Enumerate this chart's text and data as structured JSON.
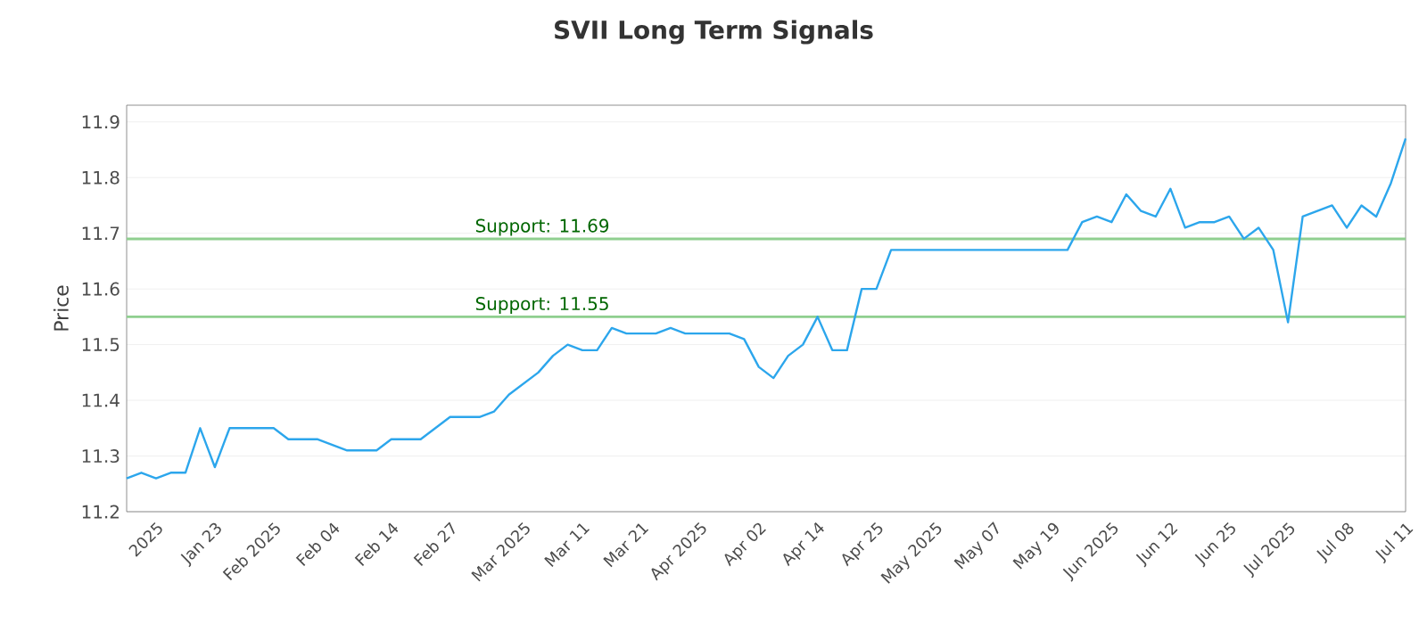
{
  "chart_data": {
    "type": "line",
    "title": "SVII Long Term Signals",
    "ylabel": "Price",
    "categories": [
      null,
      null,
      "2025",
      null,
      null,
      null,
      "Jan 23",
      null,
      null,
      null,
      "Feb 2025",
      null,
      null,
      null,
      "Feb 04",
      null,
      null,
      null,
      "Feb 14",
      null,
      null,
      null,
      "Feb 27",
      null,
      null,
      null,
      null,
      "Mar 2025",
      null,
      null,
      null,
      "Mar 11",
      null,
      null,
      null,
      "Mar 21",
      null,
      null,
      null,
      "Apr 2025",
      null,
      null,
      null,
      "Apr 02",
      null,
      null,
      null,
      "Apr 14",
      null,
      null,
      null,
      "Apr 25",
      null,
      null,
      null,
      "May 2025",
      null,
      null,
      null,
      "May 07",
      null,
      null,
      null,
      "May 19",
      null,
      null,
      null,
      "Jun 2025",
      null,
      null,
      null,
      "Jun 12",
      null,
      null,
      null,
      "Jun 25",
      null,
      null,
      null,
      "Jul 2025",
      null,
      null,
      null,
      "Jul 08",
      null,
      null,
      null,
      "Jul 11"
    ],
    "series": [
      {
        "color": "#2ca6ec",
        "values": [
          11.26,
          11.27,
          11.26,
          11.27,
          11.27,
          11.35,
          11.28,
          11.35,
          11.35,
          11.35,
          11.35,
          11.33,
          11.33,
          11.33,
          11.32,
          11.31,
          11.31,
          11.31,
          11.33,
          11.33,
          11.33,
          11.35,
          11.37,
          11.37,
          11.37,
          11.38,
          11.41,
          11.43,
          11.45,
          11.48,
          11.5,
          11.49,
          11.49,
          11.53,
          11.52,
          11.52,
          11.52,
          11.53,
          11.52,
          11.52,
          11.52,
          11.52,
          11.51,
          11.46,
          11.44,
          11.48,
          11.5,
          11.55,
          11.49,
          11.49,
          11.6,
          11.6,
          11.67,
          11.67,
          11.67,
          11.67,
          11.67,
          11.67,
          11.67,
          11.67,
          11.67,
          11.67,
          11.67,
          11.67,
          11.67,
          11.72,
          11.73,
          11.72,
          11.77,
          11.74,
          11.73,
          11.78,
          11.71,
          11.72,
          11.72,
          11.73,
          11.69,
          11.71,
          11.67,
          11.54,
          11.73,
          11.74,
          11.75,
          11.71,
          11.75,
          11.73,
          11.79,
          11.87
        ]
      }
    ],
    "ylim": [
      11.2,
      11.93
    ],
    "yticks": [
      11.2,
      11.3,
      11.4,
      11.5,
      11.6,
      11.7,
      11.8,
      11.9
    ],
    "grid": "y",
    "legend": false,
    "ref_lines": [
      {
        "axis": "y",
        "value": 11.69,
        "label": "Support: 11.69",
        "color": "#8fcf8f"
      },
      {
        "axis": "y",
        "value": 11.55,
        "label": "Support: 11.55",
        "color": "#8fcf8f"
      }
    ]
  }
}
